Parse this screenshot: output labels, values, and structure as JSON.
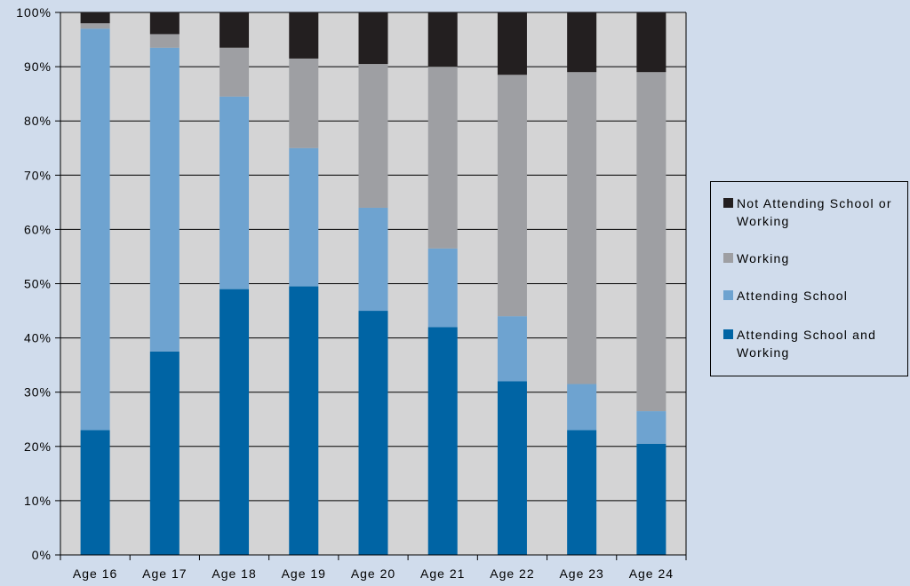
{
  "chart_data": {
    "type": "bar",
    "stacked": true,
    "categories": [
      "Age 16",
      "Age 17",
      "Age 18",
      "Age 19",
      "Age 20",
      "Age 21",
      "Age 22",
      "Age 23",
      "Age 24"
    ],
    "series": [
      {
        "name": "Attending School and Working",
        "color": "#0064a4",
        "values": [
          23,
          37.5,
          49,
          49.5,
          45,
          42,
          32,
          23,
          20.5
        ]
      },
      {
        "name": "Attending School",
        "color": "#6ea3d0",
        "values": [
          74,
          56,
          35.5,
          25.5,
          19,
          14.5,
          12,
          8.5,
          6
        ]
      },
      {
        "name": "Working",
        "color": "#9e9fa3",
        "values": [
          1,
          2.5,
          9,
          16.5,
          26.5,
          33.5,
          44.5,
          57.5,
          62.5
        ]
      },
      {
        "name": "Not Attending School or Working",
        "color": "#231f20",
        "values": [
          2,
          4,
          6.5,
          8.5,
          9.5,
          10,
          11.5,
          11,
          11
        ]
      }
    ],
    "yticks": [
      "0%",
      "10%",
      "20%",
      "30%",
      "40%",
      "50%",
      "60%",
      "70%",
      "80%",
      "90%",
      "100%"
    ],
    "ylim": [
      0,
      100
    ],
    "grid": true,
    "legend_position": "right",
    "legend": [
      {
        "label": "Not Attending School or Working",
        "color": "#231f20"
      },
      {
        "label": "Working",
        "color": "#9e9fa3"
      },
      {
        "label": "Attending School",
        "color": "#6ea3d0"
      },
      {
        "label": "Attending School and Working",
        "color": "#0064a4"
      }
    ],
    "plot_background": "#d4d4d5",
    "page_background": "#d0dcec"
  }
}
